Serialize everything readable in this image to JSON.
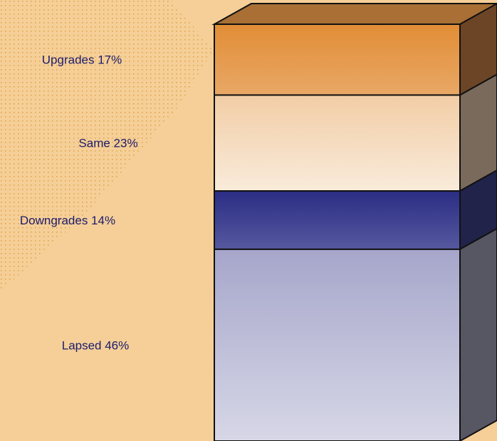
{
  "chart_data": {
    "type": "bar",
    "stacked": true,
    "categories": [
      "Upgrades",
      "Same",
      "Downgrades",
      "Lapsed"
    ],
    "values": [
      17,
      23,
      14,
      46
    ],
    "labels": [
      "Upgrades 17%",
      "Same 23%",
      "Downgrades 14%",
      "Lapsed 46%"
    ],
    "title": "",
    "xlabel": "",
    "ylabel": "",
    "grid": false,
    "legend": "none",
    "colors": {
      "background": "#f5cf97",
      "dots": "#e3a453",
      "label_text": "#1c1c6e",
      "segments": [
        {
          "front_top": "#e28d36",
          "front_bottom": "#e8a866",
          "side": "#6c4527"
        },
        {
          "front_top": "#f2cda5",
          "front_bottom": "#f9ebdb",
          "side": "#7a6a5c"
        },
        {
          "front_top": "#2a2d83",
          "front_bottom": "#56589f",
          "side": "#22234a"
        },
        {
          "front_top": "#a6a6cb",
          "front_bottom": "#d7d7e7",
          "side": "#575763"
        }
      ],
      "top_face": "#a96f35",
      "edge": "#111111"
    }
  }
}
